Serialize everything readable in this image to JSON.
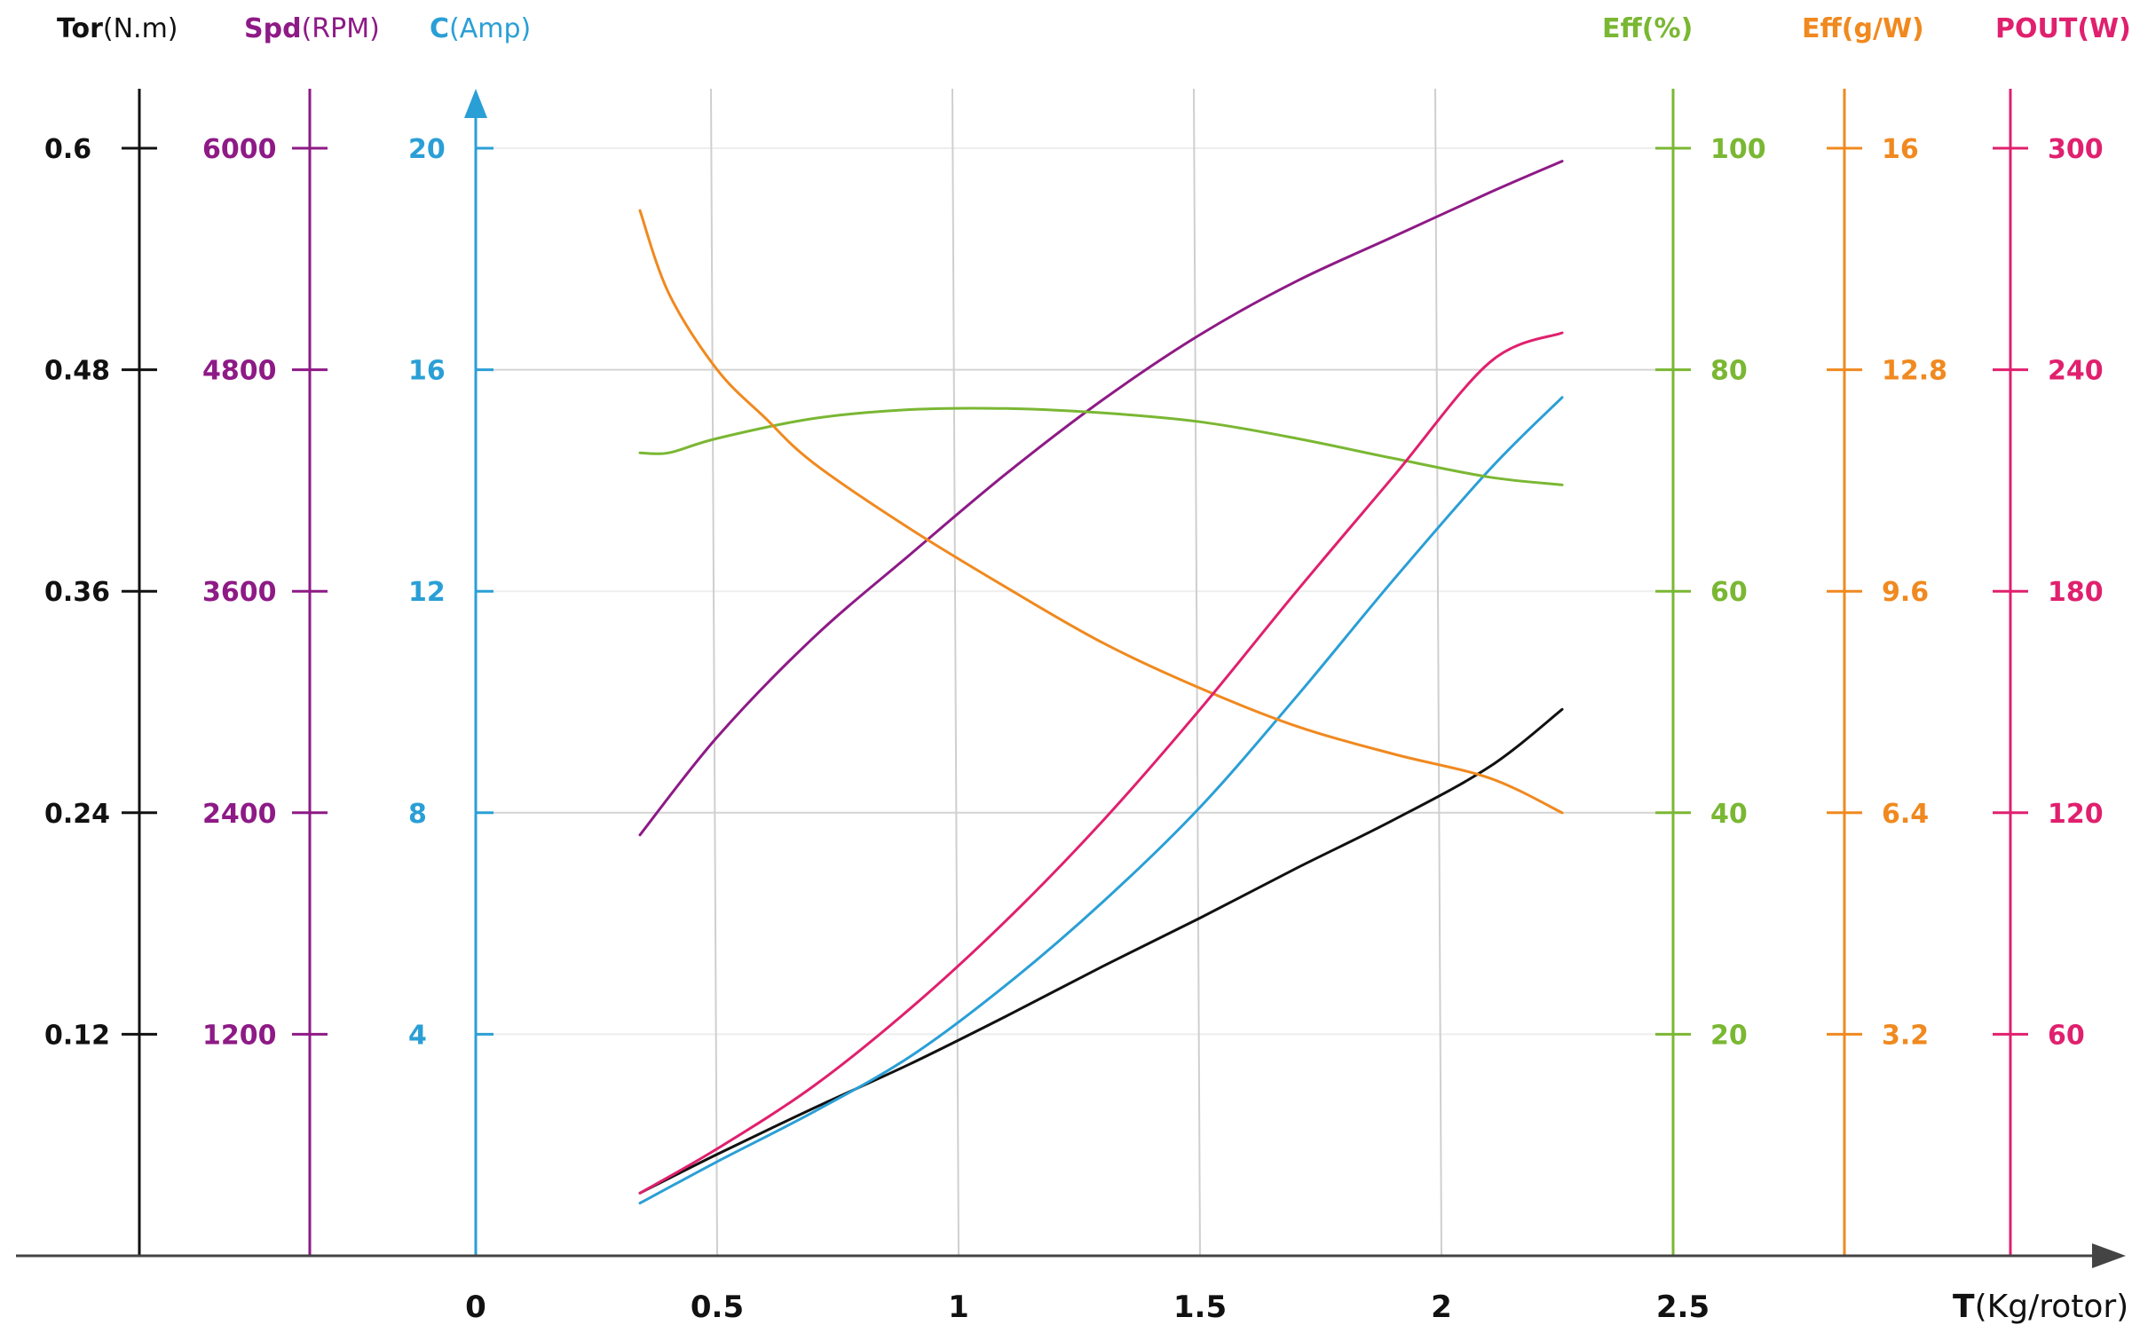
{
  "chart_data": {
    "type": "line",
    "x_axis": {
      "label_bold": "T",
      "label_unit": "(Kg/rotor)",
      "range": [
        0,
        3.15
      ],
      "ticks": [
        "0",
        "0.5",
        "1",
        "1.5",
        "2",
        "2.5"
      ],
      "tick_values": [
        0,
        0.5,
        1,
        1.5,
        2,
        2.5
      ],
      "color": "#444444"
    },
    "y_axes": [
      {
        "id": "tor",
        "label_bold": "Tor",
        "label_unit": "(N.m)",
        "color": "#111111",
        "range": [
          0,
          0.6
        ],
        "ticks": [
          "0.12",
          "0.24",
          "0.36",
          "0.48",
          "0.6"
        ],
        "tick_values": [
          0.12,
          0.24,
          0.36,
          0.48,
          0.6
        ],
        "side": "left"
      },
      {
        "id": "spd",
        "label_bold": "Spd",
        "label_unit": "(RPM)",
        "color": "#8e1a86",
        "range": [
          0,
          6000
        ],
        "ticks": [
          "1200",
          "2400",
          "3600",
          "4800",
          "6000"
        ],
        "tick_values": [
          1200,
          2400,
          3600,
          4800,
          6000
        ],
        "side": "left"
      },
      {
        "id": "c",
        "label_bold": "C",
        "label_unit": "(Amp)",
        "color": "#2a9fd6",
        "range": [
          0,
          20
        ],
        "ticks": [
          "4",
          "8",
          "12",
          "16",
          "20"
        ],
        "tick_values": [
          4,
          8,
          12,
          16,
          20
        ],
        "side": "left"
      },
      {
        "id": "effp",
        "label_bold": "Eff(%)",
        "label_unit": "",
        "color": "#7ab733",
        "range": [
          0,
          100
        ],
        "ticks": [
          "20",
          "40",
          "60",
          "80",
          "100"
        ],
        "tick_values": [
          20,
          40,
          60,
          80,
          100
        ],
        "side": "right"
      },
      {
        "id": "effg",
        "label_bold": "Eff(g/W)",
        "label_unit": "",
        "color": "#f0891f",
        "range": [
          0,
          16
        ],
        "ticks": [
          "3.2",
          "6.4",
          "9.6",
          "12.8",
          "16"
        ],
        "tick_values": [
          3.2,
          6.4,
          9.6,
          12.8,
          16
        ],
        "side": "right"
      },
      {
        "id": "pout",
        "label_bold": "POUT(W)",
        "label_unit": "",
        "color": "#e0206e",
        "range": [
          0,
          300
        ],
        "ticks": [
          "60",
          "120",
          "180",
          "240",
          "300"
        ],
        "tick_values": [
          60,
          120,
          180,
          240,
          300
        ],
        "side": "right"
      }
    ],
    "grid": true,
    "series": [
      {
        "axis": "tor",
        "color": "#111111",
        "x": [
          0.34,
          0.5,
          0.7,
          0.9,
          1.1,
          1.3,
          1.5,
          1.7,
          1.9,
          2.1,
          2.25
        ],
        "y": [
          0.034,
          0.055,
          0.08,
          0.104,
          0.13,
          0.157,
          0.183,
          0.21,
          0.236,
          0.265,
          0.296
        ]
      },
      {
        "axis": "spd",
        "color": "#8e1a86",
        "x": [
          0.34,
          0.5,
          0.7,
          0.9,
          1.1,
          1.3,
          1.5,
          1.7,
          1.9,
          2.1,
          2.25
        ],
        "y": [
          2280,
          2810,
          3350,
          3800,
          4240,
          4640,
          4990,
          5280,
          5520,
          5760,
          5930
        ]
      },
      {
        "axis": "c",
        "color": "#2a9fd6",
        "x": [
          0.34,
          0.5,
          0.7,
          0.9,
          1.1,
          1.3,
          1.5,
          1.7,
          1.9,
          2.1,
          2.25
        ],
        "y": [
          0.95,
          1.7,
          2.6,
          3.6,
          4.9,
          6.4,
          8.1,
          10.1,
          12.2,
          14.2,
          15.5
        ]
      },
      {
        "axis": "effp",
        "color": "#7ab733",
        "x": [
          0.34,
          0.4,
          0.5,
          0.7,
          0.9,
          1.1,
          1.3,
          1.5,
          1.7,
          1.9,
          2.1,
          2.25
        ],
        "y": [
          72.5,
          72.5,
          73.8,
          75.6,
          76.4,
          76.5,
          76.1,
          75.3,
          73.8,
          72.0,
          70.3,
          69.6
        ]
      },
      {
        "axis": "effg",
        "color": "#f0891f",
        "x": [
          0.34,
          0.4,
          0.5,
          0.6,
          0.7,
          0.9,
          1.1,
          1.3,
          1.5,
          1.7,
          1.9,
          2.1,
          2.25
        ],
        "y": [
          15.1,
          13.9,
          12.8,
          12.1,
          11.45,
          10.5,
          9.65,
          8.85,
          8.2,
          7.65,
          7.25,
          6.9,
          6.4
        ]
      },
      {
        "axis": "pout",
        "color": "#e0206e",
        "x": [
          0.34,
          0.5,
          0.7,
          0.9,
          1.1,
          1.3,
          1.5,
          1.7,
          1.9,
          2.1,
          2.25
        ],
        "y": [
          17,
          29,
          46,
          67,
          91,
          118,
          148,
          180,
          211,
          242,
          250
        ]
      }
    ]
  }
}
